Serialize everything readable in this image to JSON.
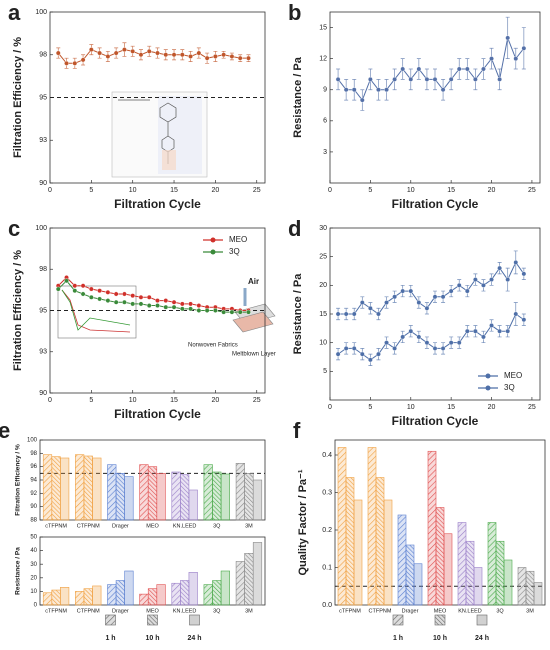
{
  "chart_data": [
    {
      "type": "line",
      "panel_label": "a",
      "y_label": "Filtration Efficiency / %",
      "x_label": "Filtration Cycle",
      "x": [
        1,
        2,
        3,
        4,
        5,
        6,
        7,
        8,
        9,
        10,
        11,
        12,
        13,
        14,
        15,
        16,
        17,
        18,
        19,
        20,
        21,
        22,
        23,
        24
      ],
      "series": [
        {
          "color": "#c0562b",
          "values": [
            97.6,
            97.0,
            97.0,
            97.2,
            97.8,
            97.6,
            97.4,
            97.6,
            97.8,
            97.7,
            97.5,
            97.7,
            97.6,
            97.5,
            97.5,
            97.5,
            97.4,
            97.6,
            97.3,
            97.4,
            97.5,
            97.4,
            97.3,
            97.3
          ],
          "errors": [
            0.3,
            0.3,
            0.3,
            0.3,
            0.3,
            0.3,
            0.3,
            0.3,
            0.4,
            0.3,
            0.3,
            0.3,
            0.3,
            0.3,
            0.3,
            0.3,
            0.3,
            0.3,
            0.3,
            0.3,
            0.2,
            0.2,
            0.2,
            0.2
          ]
        }
      ],
      "xlim": [
        0,
        26
      ],
      "xticks": [
        0,
        5,
        10,
        15,
        20,
        25
      ],
      "ylim": [
        90,
        100
      ],
      "yticks": [
        90,
        {
          "value": 92.5,
          "label": "93"
        },
        95,
        {
          "value": 97.5,
          "label": "98"
        },
        100
      ],
      "reference_line": 95
    },
    {
      "type": "line",
      "panel_label": "b",
      "y_label": "Resistance / Pa",
      "x_label": "Filtration Cycle",
      "x": [
        1,
        2,
        3,
        4,
        5,
        6,
        7,
        8,
        9,
        10,
        11,
        12,
        13,
        14,
        15,
        16,
        17,
        18,
        19,
        20,
        21,
        22,
        23,
        24
      ],
      "series": [
        {
          "color": "#5470a8",
          "values": [
            10,
            9,
            9,
            8,
            10,
            9,
            9,
            10,
            11,
            10,
            11,
            10,
            10,
            9,
            10,
            11,
            11,
            10,
            11,
            12,
            10,
            14,
            12,
            13
          ],
          "errors": [
            1,
            1,
            1,
            1,
            1,
            1,
            1,
            1,
            1,
            1,
            1,
            1,
            1,
            1,
            1,
            1,
            1,
            1,
            1,
            1,
            1,
            2,
            1,
            2
          ]
        }
      ],
      "xlim": [
        0,
        26
      ],
      "xticks": [
        0,
        5,
        10,
        15,
        20,
        25
      ],
      "ylim": [
        0,
        16.5
      ],
      "yticks": [
        3,
        6,
        9,
        12,
        15
      ]
    },
    {
      "type": "line",
      "panel_label": "c",
      "y_label": "Filtration Efficiency / %",
      "x_label": "Filtration Cycle",
      "x": [
        1,
        2,
        3,
        4,
        5,
        6,
        7,
        8,
        9,
        10,
        11,
        12,
        13,
        14,
        15,
        16,
        17,
        18,
        19,
        20,
        21,
        22,
        23,
        24
      ],
      "series": [
        {
          "name": "MEO",
          "color": "#d0302a",
          "values": [
            96.5,
            97.0,
            96.5,
            96.5,
            96.3,
            96.2,
            96.1,
            96.0,
            96.0,
            95.9,
            95.8,
            95.8,
            95.6,
            95.6,
            95.5,
            95.4,
            95.4,
            95.3,
            95.2,
            95.2,
            95.1,
            95.1,
            95.0,
            95.0
          ]
        },
        {
          "name": "3Q",
          "color": "#3a8a3a",
          "values": [
            96.3,
            96.8,
            96.2,
            96.0,
            95.8,
            95.7,
            95.6,
            95.5,
            95.5,
            95.4,
            95.4,
            95.3,
            95.3,
            95.2,
            95.2,
            95.1,
            95.1,
            95.0,
            95.0,
            95.0,
            94.9,
            94.9,
            94.9,
            94.9
          ]
        }
      ],
      "xlim": [
        0,
        26
      ],
      "xticks": [
        0,
        5,
        10,
        15,
        20,
        25
      ],
      "ylim": [
        90,
        100
      ],
      "yticks": [
        90,
        {
          "value": 92.5,
          "label": "93"
        },
        95,
        {
          "value": 97.5,
          "label": "98"
        },
        100
      ],
      "reference_line": 95,
      "legend": "upper right",
      "annotations": [
        "Air",
        "Nonwoven Fabrics",
        "Meltblown Layer"
      ]
    },
    {
      "type": "line",
      "panel_label": "d",
      "y_label": "Resistance / Pa",
      "x_label": "Filtration Cycle",
      "x": [
        1,
        2,
        3,
        4,
        5,
        6,
        7,
        8,
        9,
        10,
        11,
        12,
        13,
        14,
        15,
        16,
        17,
        18,
        19,
        20,
        21,
        22,
        23,
        24
      ],
      "series": [
        {
          "name": "MEO",
          "color": "#4e6fa8",
          "values": [
            15,
            15,
            15,
            17,
            16,
            15,
            17,
            18,
            19,
            19,
            17,
            16,
            18,
            18,
            19,
            20,
            19,
            21,
            20,
            21,
            23,
            21,
            24,
            22
          ],
          "errors": [
            1,
            1,
            1,
            1,
            1,
            1,
            1,
            1,
            1,
            1,
            1,
            1,
            1,
            1,
            1,
            1,
            1,
            1,
            1,
            1,
            1,
            2,
            2,
            1
          ]
        },
        {
          "name": "3Q",
          "color": "#4e6fa8",
          "values": [
            8,
            9,
            9,
            8,
            7,
            8,
            10,
            9,
            11,
            12,
            11,
            10,
            9,
            9,
            10,
            10,
            12,
            12,
            11,
            13,
            12,
            12,
            15,
            14
          ],
          "errors": [
            1,
            1,
            1,
            1,
            1,
            1,
            1,
            1,
            1,
            1,
            1,
            1,
            1,
            1,
            1,
            1,
            1,
            1,
            1,
            1,
            1,
            1,
            2,
            1
          ]
        }
      ],
      "xlim": [
        0,
        26
      ],
      "xticks": [
        0,
        5,
        10,
        15,
        20,
        25
      ],
      "ylim": [
        0,
        30
      ],
      "yticks": [
        5,
        10,
        15,
        20,
        25,
        30
      ],
      "legend": "lower right"
    },
    {
      "type": "bar",
      "panel_label": "e",
      "y_label": "Filtration Efficiency / %",
      "categories": [
        "cTFPNM",
        "CTFPNM",
        "Drager",
        "MEO",
        "KN.LEED",
        "3Q",
        "3M"
      ],
      "colors": [
        "#f0a040",
        "#f0a040",
        "#5a7fd0",
        "#e05050",
        "#9a7fc8",
        "#4caa4c",
        "#888888"
      ],
      "series": [
        {
          "hatch": "/",
          "values": [
            97.8,
            97.8,
            96.3,
            96.3,
            95.2,
            96.3,
            96.5
          ]
        },
        {
          "hatch": "\\",
          "values": [
            97.5,
            97.6,
            95.0,
            96.0,
            94.8,
            95.2,
            95.0
          ]
        },
        {
          "hatch": "none",
          "values": [
            97.3,
            97.3,
            94.5,
            95.0,
            92.5,
            94.9,
            94.0
          ]
        }
      ],
      "ylim": [
        88,
        100
      ],
      "yticks": [
        88,
        90,
        92,
        94,
        96,
        98,
        100
      ],
      "reference_line": 95
    },
    {
      "type": "bar",
      "y_label": "Resistance / Pa",
      "categories": [
        "cTFPNM",
        "CTFPNM",
        "Drager",
        "MEO",
        "KN.LEED",
        "3Q",
        "3M"
      ],
      "colors": [
        "#f0a040",
        "#f0a040",
        "#5a7fd0",
        "#e05050",
        "#9a7fc8",
        "#4caa4c",
        "#888888"
      ],
      "series": [
        {
          "name": "1 h",
          "hatch": "/",
          "values": [
            9,
            10,
            15,
            8,
            16,
            15,
            32
          ]
        },
        {
          "name": "10 h",
          "hatch": "\\",
          "values": [
            11,
            12,
            18,
            12,
            18,
            18,
            38
          ]
        },
        {
          "name": "24 h",
          "hatch": "none",
          "values": [
            13,
            14,
            25,
            15,
            24,
            25,
            46
          ]
        }
      ],
      "ylim": [
        0,
        50
      ],
      "yticks": [
        0,
        10,
        20,
        30,
        40,
        50
      ]
    },
    {
      "type": "bar",
      "panel_label": "f",
      "y_label": "Quality Factor / Pa⁻¹",
      "categories": [
        "cTFPNM",
        "CTFPNM",
        "Drager",
        "MEO",
        "KN.LEED",
        "3Q",
        "3M"
      ],
      "colors": [
        "#f0a040",
        "#f0a040",
        "#5a7fd0",
        "#e05050",
        "#9a7fc8",
        "#4caa4c",
        "#888888"
      ],
      "series": [
        {
          "name": "1 h",
          "hatch": "/",
          "values": [
            0.42,
            0.42,
            0.24,
            0.41,
            0.22,
            0.22,
            0.1
          ]
        },
        {
          "name": "10 h",
          "hatch": "\\",
          "values": [
            0.34,
            0.34,
            0.16,
            0.26,
            0.17,
            0.17,
            0.09
          ]
        },
        {
          "name": "24 h",
          "hatch": "none",
          "values": [
            0.28,
            0.28,
            0.11,
            0.19,
            0.1,
            0.12,
            0.06
          ]
        }
      ],
      "ylim": [
        0,
        0.44
      ],
      "yticks": [
        {
          "value": 0,
          "label": "0.0"
        },
        0.1,
        0.2,
        0.3,
        0.4
      ],
      "reference_line": 0.05
    }
  ]
}
